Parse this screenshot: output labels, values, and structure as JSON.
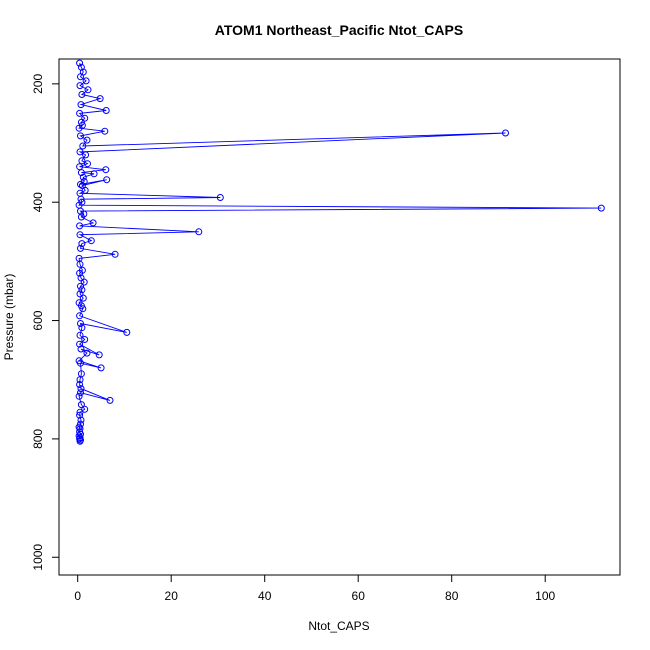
{
  "chart_data": {
    "type": "line",
    "title": "ATOM1 Northeast_Pacific Ntot_CAPS",
    "xlabel": "Ntot_CAPS",
    "ylabel": "Pressure (mbar)",
    "xlim": [
      -4,
      116
    ],
    "ylim": [
      1030,
      158
    ],
    "y_inverted": true,
    "x_ticks": [
      0,
      20,
      40,
      60,
      80,
      100
    ],
    "y_ticks": [
      200,
      400,
      600,
      800,
      1000
    ],
    "grid": false,
    "legend": "none",
    "marker": "open-circle",
    "color": "#0000ff",
    "series": [
      {
        "x": [
          0.4,
          0.8,
          1.2,
          0.6,
          1.8,
          0.5,
          2.2,
          0.9,
          4.8,
          0.7,
          6.1,
          0.4,
          1.5,
          0.8,
          1.0,
          0.3,
          5.8,
          0.6,
          2.0,
          1.1,
          91.5,
          0.5,
          1.7,
          0.9,
          2.1,
          0.4,
          6.0,
          0.8,
          3.5,
          1.2,
          1.4,
          0.6,
          6.2,
          1.0,
          1.6,
          0.5,
          30.5,
          0.7,
          0.9,
          0.3,
          112.0,
          0.6,
          1.3,
          0.8,
          3.3,
          0.4,
          25.9,
          0.5,
          2.9,
          0.9,
          0.6,
          8.0,
          0.3,
          0.5,
          1.0,
          0.4,
          0.7,
          1.4,
          0.6,
          0.9,
          0.5,
          1.2,
          0.3,
          0.8,
          1.1,
          0.4,
          10.5,
          0.6,
          0.9,
          0.5,
          1.5,
          0.4,
          4.6,
          0.7,
          2.0,
          0.3,
          5.0,
          0.6,
          0.8,
          0.5,
          0.4,
          0.7,
          6.9,
          0.6,
          0.3,
          0.8,
          1.5,
          0.5,
          0.4,
          0.7,
          0.6,
          0.3,
          0.5,
          0.4,
          0.6,
          0.3,
          0.5,
          0.4,
          0.6,
          0.5
        ],
        "y": [
          165,
          172,
          180,
          188,
          195,
          203,
          210,
          218,
          225,
          235,
          245,
          250,
          258,
          265,
          270,
          275,
          280,
          288,
          295,
          305,
          283,
          315,
          320,
          330,
          335,
          340,
          345,
          350,
          352,
          358,
          365,
          370,
          362,
          372,
          380,
          385,
          392,
          395,
          400,
          405,
          410,
          415,
          420,
          425,
          435,
          440,
          450,
          455,
          465,
          470,
          478,
          488,
          495,
          505,
          515,
          520,
          528,
          535,
          542,
          548,
          555,
          562,
          570,
          575,
          580,
          592,
          620,
          605,
          612,
          625,
          632,
          640,
          658,
          648,
          655,
          668,
          680,
          672,
          690,
          700,
          708,
          715,
          735,
          722,
          728,
          742,
          750,
          755,
          760,
          768,
          775,
          780,
          783,
          788,
          792,
          795,
          798,
          800,
          802,
          804
        ]
      }
    ]
  }
}
